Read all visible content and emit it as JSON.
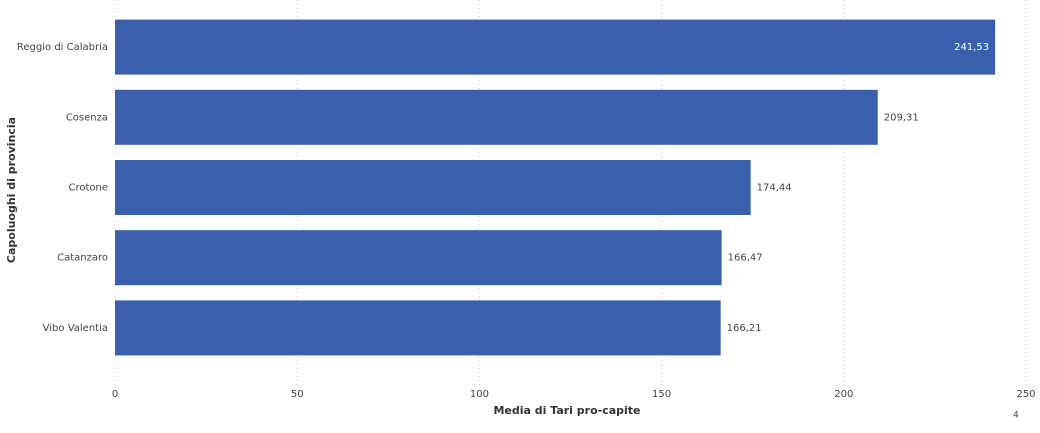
{
  "chart_data": {
    "type": "hbar",
    "x_label": "Media di Tari pro-capite",
    "y_label": "Capoluoghi di provincia",
    "categories": [
      "Reggio di Calabria",
      "Cosenza",
      "Crotone",
      "Catanzaro",
      "Vibo Valentia"
    ],
    "values": [
      241.53,
      209.31,
      174.44,
      166.47,
      166.21
    ],
    "value_labels": [
      "241,53",
      "209,31",
      "174,44",
      "166,47",
      "166,21"
    ],
    "color": "#3a5fad",
    "xlim": [
      0,
      250
    ],
    "xticks": [
      0,
      50,
      100,
      150,
      200,
      250
    ],
    "grid": true,
    "annotations": [
      "4"
    ]
  }
}
